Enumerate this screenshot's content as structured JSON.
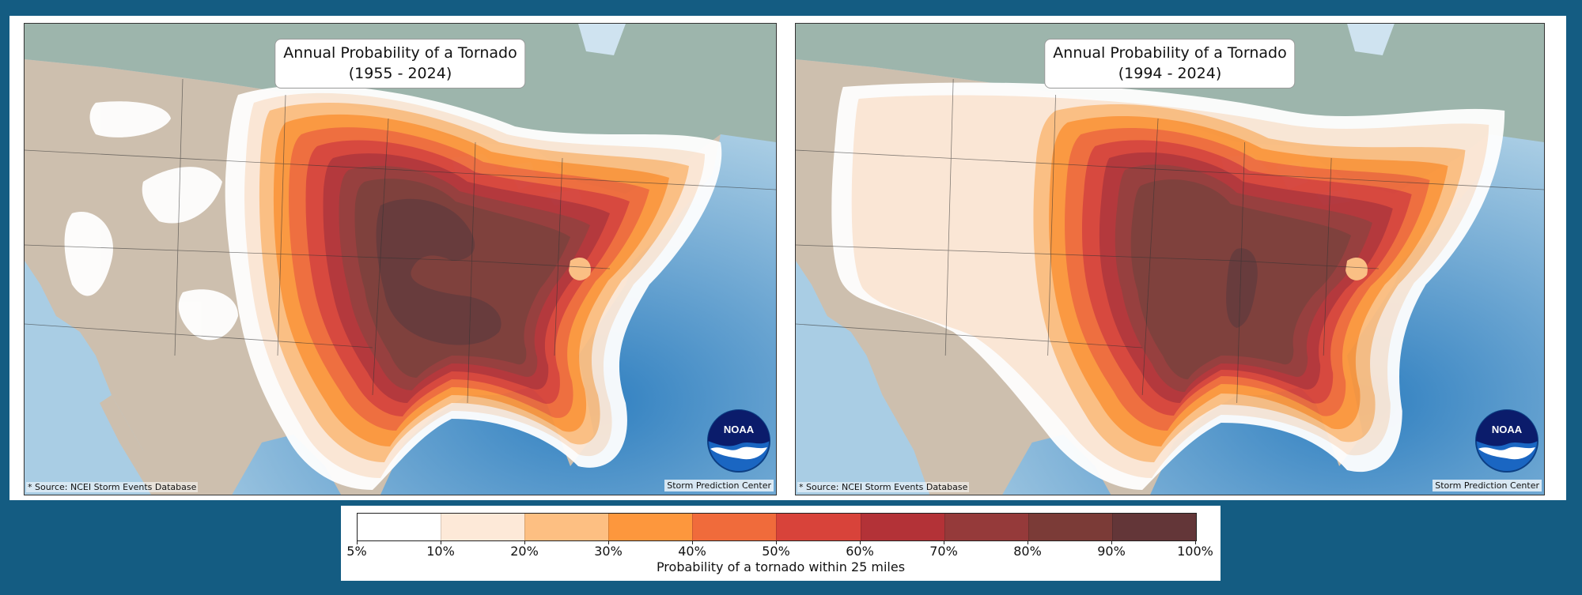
{
  "maps": [
    {
      "title_line1": "Annual Probability of a Tornado",
      "title_line2": "(1955 - 2024)",
      "source": "* Source: NCEI Storm Events Database",
      "credit": "Storm Prediction Center",
      "logo_text": "NOAA"
    },
    {
      "title_line1": "Annual Probability of a Tornado",
      "title_line2": "(1994 - 2024)",
      "source": "* Source: NCEI Storm Events Database",
      "credit": "Storm Prediction Center",
      "logo_text": "NOAA"
    }
  ],
  "legend": {
    "caption": "Probability of a tornado within 25 miles",
    "ticks": [
      "5%",
      "10%",
      "20%",
      "30%",
      "40%",
      "50%",
      "60%",
      "70%",
      "80%",
      "90%",
      "100%"
    ],
    "colors": [
      "#ffffff",
      "#fde9d8",
      "#fdbf82",
      "#fd973d",
      "#f06b3b",
      "#d8433a",
      "#b33237",
      "#953a3a",
      "#7b3b37",
      "#633638"
    ]
  },
  "colors": {
    "background": "#145c82",
    "ocean": "#9fc4de",
    "land": "#cdbfae",
    "canada": "#9db5ac"
  }
}
